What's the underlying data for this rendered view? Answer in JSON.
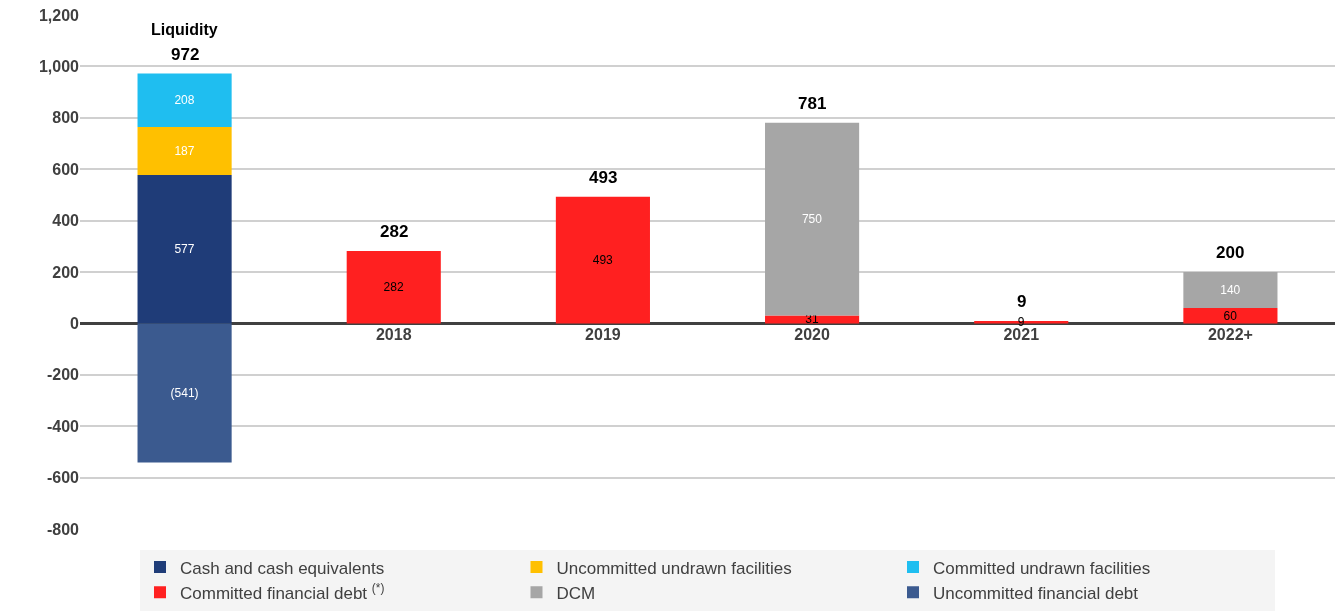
{
  "chart_data": {
    "type": "bar",
    "stacked": true,
    "categories": [
      null,
      "2018",
      "2019",
      "2020",
      "2021",
      "2022+"
    ],
    "series": [
      {
        "name": "Cash and cash equivalents",
        "color": "#1f3c78",
        "values": [
          577,
          null,
          null,
          null,
          null,
          null
        ]
      },
      {
        "name": "Uncommitted undrawn facilities",
        "color": "#ffc000",
        "values": [
          187,
          null,
          null,
          null,
          null,
          null
        ]
      },
      {
        "name": "Committed undrawn facilities",
        "color": "#1fbef0",
        "values": [
          208,
          null,
          null,
          null,
          null,
          null
        ]
      },
      {
        "name": "Committed financial debt $^{(*)}$",
        "color": "#ff2020",
        "values": [
          null,
          282,
          493,
          31,
          9,
          60
        ]
      },
      {
        "name": "DCM",
        "color": "#a6a6a6",
        "values": [
          null,
          null,
          null,
          750,
          null,
          140
        ]
      },
      {
        "name": "Uncommitted financial debt",
        "color": "#3b5a8f",
        "values": [
          -541,
          null,
          null,
          null,
          null,
          null
        ],
        "value_labels": [
          "(541)",
          null,
          null,
          null,
          null,
          null
        ]
      }
    ],
    "data_labels": true,
    "totals": [
      null,
      "282",
      "493",
      "781",
      "9",
      "200"
    ],
    "annotations": [
      "Liquidity",
      {
        "text": "972",
        "y": 972
      }
    ],
    "ylim": [
      -800,
      1200
    ],
    "yticks": [
      -800,
      -600,
      -400,
      -200,
      0,
      200,
      400,
      600,
      800,
      {
        "value": 1000,
        "label": "1,000"
      },
      {
        "value": 1200,
        "label": "1,200"
      }
    ],
    "grid": "y",
    "legend": "bottom"
  }
}
